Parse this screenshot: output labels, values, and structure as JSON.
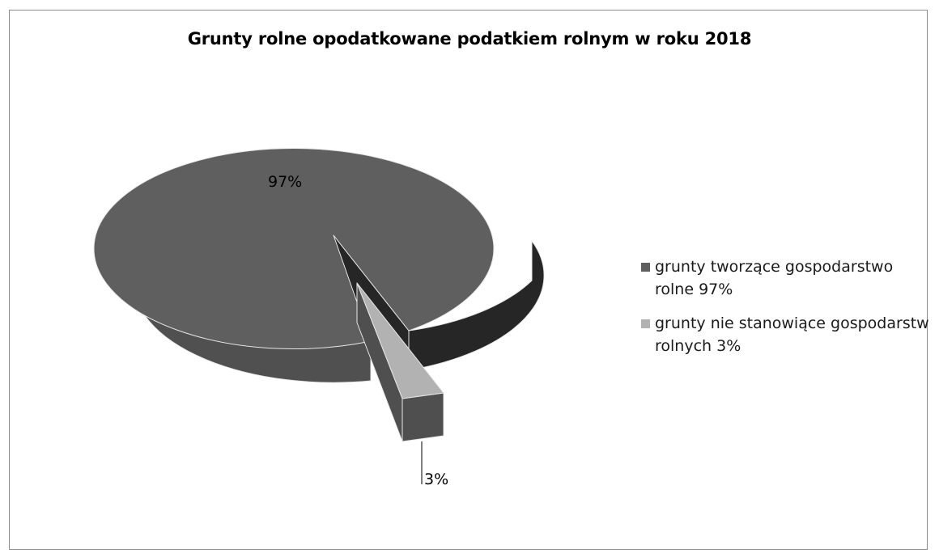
{
  "chart_data": {
    "type": "pie",
    "style": "3d-exploded",
    "title": "Grunty rolne opodatkowane podatkiem rolnym w roku 2018",
    "slices": [
      {
        "label": "grunty tworzące gospodarstwo rolne 97%",
        "value": 97,
        "data_label": "97%",
        "color": "#5f5f5f"
      },
      {
        "label": "grunty nie stanowiące gospodarstw rolnych 3%",
        "value": 3,
        "data_label": "3%",
        "color": "#b2b2b2"
      }
    ],
    "legend_position": "right"
  },
  "colors": {
    "slice_main_top": "#5f5f5f",
    "slice_main_side": "#505050",
    "slice_main_inner": "#262626",
    "slice_small_top": "#b2b2b2",
    "slice_small_side": "#4f4f4f",
    "border": "#8c8c8c"
  }
}
